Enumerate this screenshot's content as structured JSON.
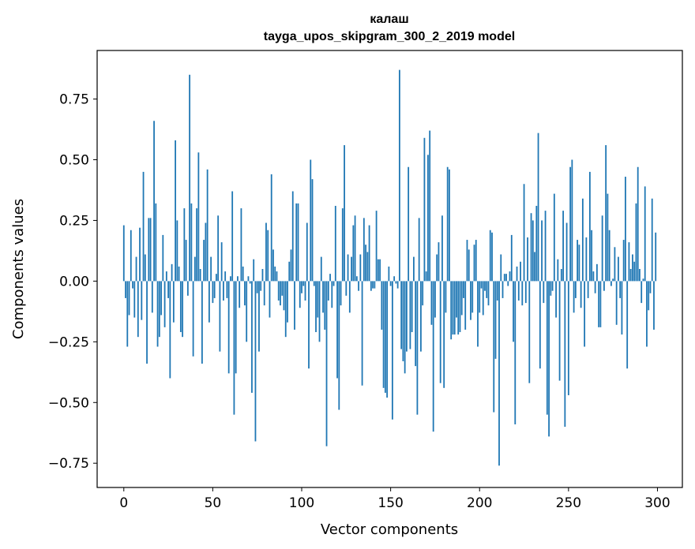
{
  "chart_data": {
    "type": "bar",
    "title_line1": "калаш",
    "title_line2": "tayga_upos_skipgram_300_2_2019 model",
    "xlabel": "Vector components",
    "ylabel": "Components values",
    "xlim": [
      -15,
      314
    ],
    "ylim": [
      -0.85,
      0.95
    ],
    "x_ticks": [
      0,
      50,
      100,
      150,
      200,
      250,
      300
    ],
    "x_tick_labels": [
      "0",
      "50",
      "100",
      "150",
      "200",
      "250",
      "300"
    ],
    "y_ticks": [
      0.75,
      0.5,
      0.25,
      0.0,
      -0.25,
      -0.5,
      -0.75
    ],
    "y_tick_labels": [
      "0.75",
      "0.50",
      "0.25",
      "0.00",
      "−0.25",
      "−0.50",
      "−0.75"
    ],
    "grid": false,
    "bar_color": "#1f77b4",
    "values": [
      0.23,
      -0.07,
      -0.27,
      -0.14,
      0.21,
      -0.03,
      -0.15,
      0.1,
      -0.23,
      0.22,
      -0.16,
      0.45,
      0.11,
      -0.34,
      0.26,
      0.26,
      -0.13,
      0.66,
      0.32,
      -0.27,
      -0.23,
      -0.14,
      0.19,
      -0.19,
      0.04,
      -0.07,
      -0.4,
      0.07,
      -0.17,
      0.58,
      0.25,
      0.06,
      -0.21,
      -0.23,
      0.3,
      0.17,
      -0.06,
      0.85,
      0.32,
      -0.31,
      0.1,
      0.3,
      0.53,
      0.05,
      -0.34,
      0.17,
      0.24,
      0.46,
      -0.17,
      0.1,
      -0.09,
      -0.07,
      0.03,
      0.27,
      -0.29,
      0.16,
      -0.08,
      0.04,
      -0.07,
      -0.38,
      0.02,
      0.37,
      -0.55,
      -0.38,
      0.02,
      -0.11,
      0.3,
      0.06,
      -0.1,
      -0.25,
      0.02,
      -0.01,
      -0.46,
      0.09,
      -0.66,
      -0.05,
      -0.29,
      -0.04,
      0.05,
      -0.1,
      0.24,
      0.21,
      -0.15,
      0.44,
      0.13,
      0.06,
      0.04,
      -0.08,
      -0.1,
      -0.06,
      -0.12,
      -0.23,
      -0.17,
      0.08,
      0.13,
      0.37,
      -0.2,
      0.32,
      0.32,
      -0.11,
      -0.05,
      -0.02,
      -0.08,
      0.24,
      -0.36,
      0.5,
      0.42,
      -0.02,
      -0.21,
      -0.15,
      -0.25,
      0.1,
      -0.13,
      -0.2,
      -0.68,
      -0.08,
      0.03,
      -0.11,
      -0.02,
      0.31,
      -0.4,
      -0.53,
      -0.1,
      0.3,
      0.56,
      -0.06,
      0.11,
      -0.13,
      0.1,
      0.23,
      0.27,
      0.02,
      -0.04,
      0.11,
      -0.43,
      0.26,
      0.15,
      0.12,
      0.23,
      -0.04,
      -0.03,
      -0.03,
      0.29,
      0.09,
      0.09,
      -0.2,
      -0.44,
      -0.46,
      -0.48,
      0.06,
      -0.02,
      -0.57,
      0.02,
      -0.01,
      -0.03,
      0.87,
      -0.28,
      -0.33,
      -0.38,
      -0.29,
      0.47,
      -0.28,
      -0.21,
      0.1,
      -0.35,
      -0.55,
      0.26,
      -0.29,
      -0.1,
      0.59,
      0.04,
      0.52,
      0.62,
      -0.18,
      -0.62,
      -0.15,
      0.11,
      0.16,
      -0.42,
      0.27,
      -0.44,
      -0.13,
      0.47,
      0.46,
      -0.24,
      -0.22,
      -0.22,
      -0.15,
      -0.22,
      -0.21,
      -0.14,
      -0.07,
      -0.2,
      0.17,
      0.13,
      -0.16,
      -0.13,
      0.15,
      0.17,
      -0.27,
      -0.13,
      -0.03,
      -0.14,
      -0.04,
      -0.07,
      -0.1,
      0.21,
      0.2,
      -0.54,
      -0.32,
      -0.08,
      -0.76,
      0.11,
      -0.07,
      0.03,
      0.03,
      -0.02,
      0.04,
      0.19,
      -0.25,
      -0.59,
      0.06,
      -0.08,
      0.08,
      -0.1,
      0.4,
      -0.09,
      0.18,
      -0.42,
      0.28,
      0.25,
      0.12,
      0.31,
      0.61,
      -0.36,
      0.25,
      -0.09,
      0.29,
      -0.55,
      -0.64,
      -0.06,
      -0.04,
      0.36,
      -0.15,
      0.09,
      -0.41,
      0.05,
      0.29,
      -0.6,
      0.24,
      -0.47,
      0.47,
      0.5,
      -0.13,
      -0.07,
      0.17,
      0.15,
      -0.11,
      0.34,
      -0.27,
      0.18,
      -0.07,
      0.45,
      0.21,
      0.04,
      -0.05,
      0.07,
      -0.19,
      -0.19,
      0.27,
      -0.04,
      0.56,
      0.36,
      0.21,
      -0.02,
      0.01,
      0.14,
      -0.18,
      0.1,
      -0.07,
      -0.22,
      0.17,
      0.43,
      -0.36,
      0.16,
      0.05,
      0.11,
      0.08,
      0.32,
      0.47,
      0.05,
      -0.09,
      0.01,
      0.39,
      -0.27,
      -0.12,
      -0.05,
      0.34,
      -0.2,
      0.2
    ]
  }
}
